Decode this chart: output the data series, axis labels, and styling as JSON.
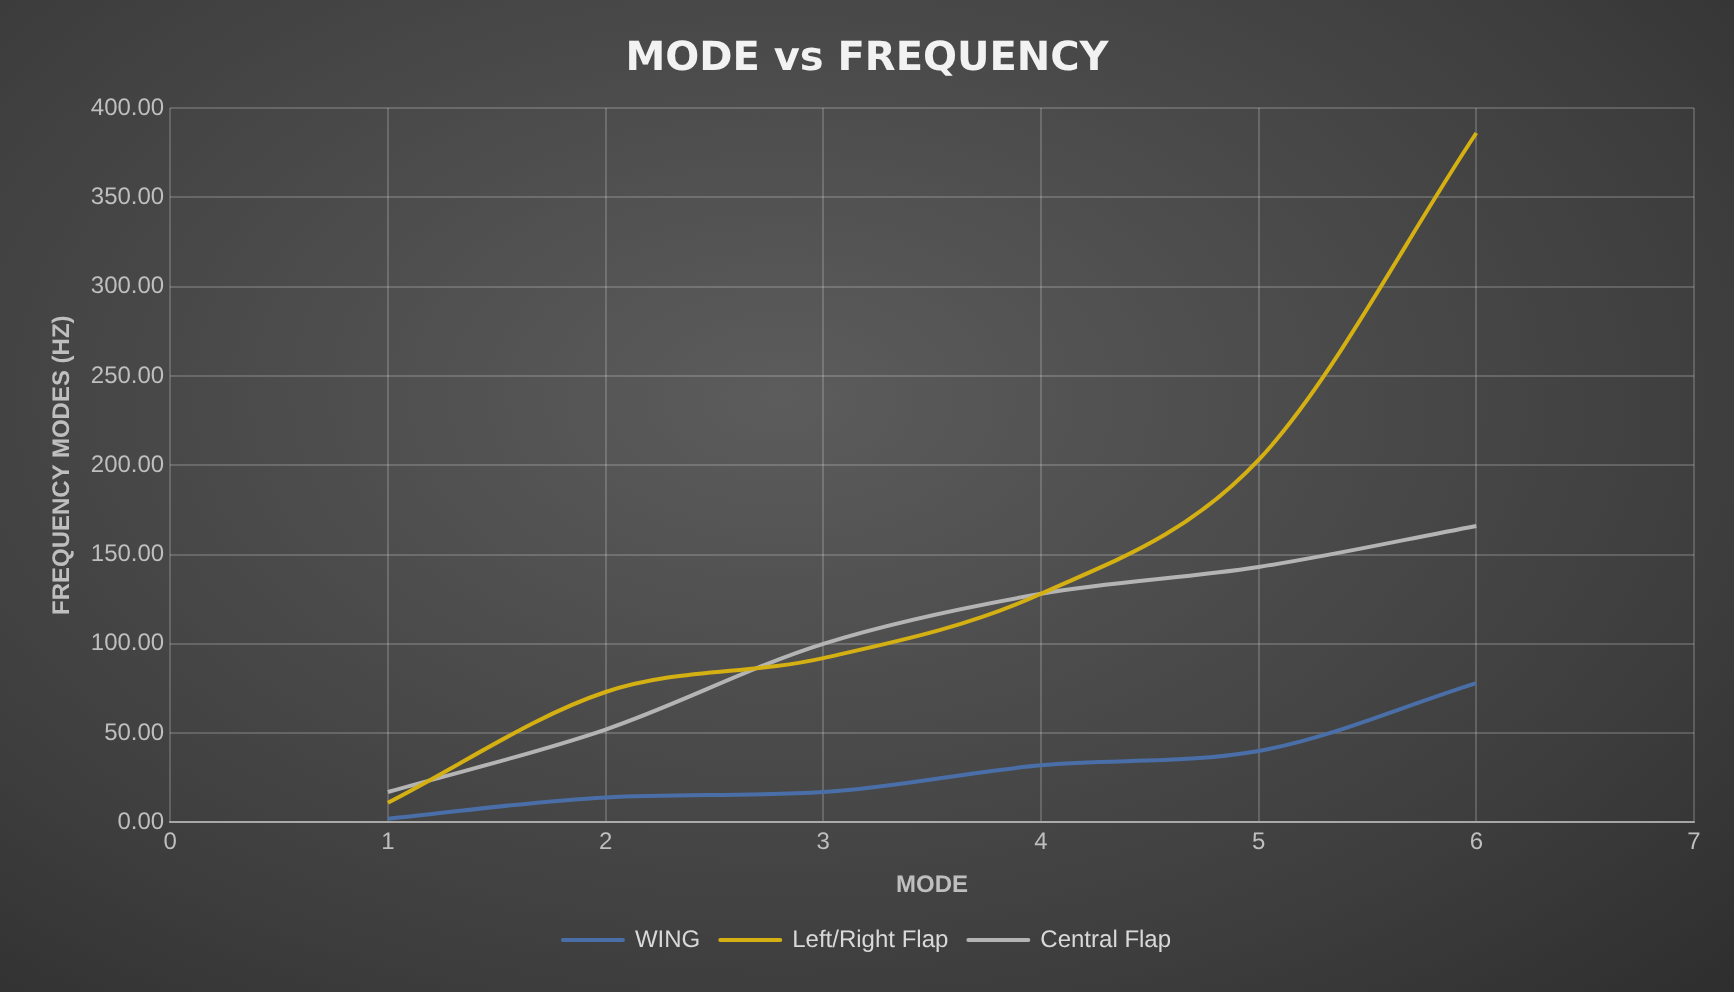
{
  "chart_data": {
    "type": "line",
    "title": "MODE vs FREQUENCY",
    "xlabel": "MODE",
    "ylabel": "FREQUENCY MODES (HZ)",
    "x": [
      1,
      2,
      3,
      4,
      5,
      6
    ],
    "series": [
      {
        "name": "WING",
        "color": "#4a6fa8",
        "values": [
          2,
          14,
          17,
          32,
          40,
          78
        ]
      },
      {
        "name": "Left/Right Flap",
        "color": "#d4b012",
        "values": [
          11,
          73,
          92,
          128,
          203,
          386
        ]
      },
      {
        "name": "Central Flap",
        "color": "#b4b4b4",
        "values": [
          17,
          52,
          100,
          128,
          143,
          166
        ]
      }
    ],
    "xlim": [
      0,
      7
    ],
    "xticks": [
      0,
      1,
      2,
      3,
      4,
      5,
      6,
      7
    ],
    "ylim": [
      0,
      400
    ],
    "yticks": [
      {
        "value": 0,
        "label": "0.00"
      },
      {
        "value": 50,
        "label": "50.00"
      },
      {
        "value": 100,
        "label": "100.00"
      },
      {
        "value": 150,
        "label": "150.00"
      },
      {
        "value": 200,
        "label": "200.00"
      },
      {
        "value": 250,
        "label": "250.00"
      },
      {
        "value": 300,
        "label": "300.00"
      },
      {
        "value": 350,
        "label": "350.00"
      },
      {
        "value": 400,
        "label": "400.00"
      }
    ],
    "grid": true,
    "legend": "bottom",
    "marker": "none",
    "line_style": "solid"
  }
}
